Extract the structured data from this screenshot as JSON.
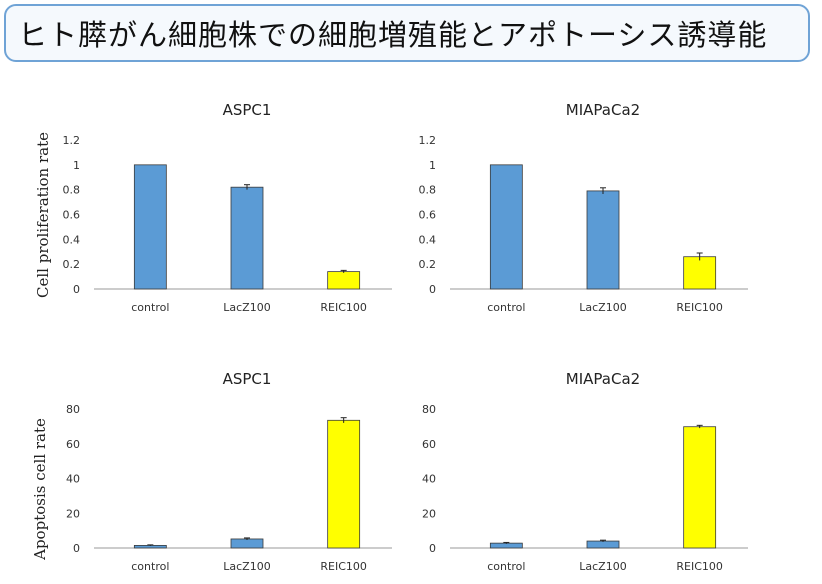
{
  "title": "ヒト膵がん細胞株での細胞増殖能とアポトーシス誘導能",
  "ylabels": {
    "top": "Cell proliferation rate",
    "bottom": "Apoptosis cell rate"
  },
  "colors": {
    "blue": "#5b9bd5",
    "yellow": "#ffff00",
    "axis": "#9a9a9a",
    "text": "#333333"
  },
  "chart_data": [
    {
      "type": "bar",
      "title": "ASPC1",
      "xlabel": "",
      "ylabel": "Cell proliferation rate",
      "categories": [
        "control",
        "LacZ100",
        "REIC100"
      ],
      "values": [
        1.0,
        0.82,
        0.14
      ],
      "errors": [
        0,
        0.02,
        0.01
      ],
      "bar_colors": [
        "#5b9bd5",
        "#5b9bd5",
        "#ffff00"
      ],
      "ylim": [
        0,
        1.2
      ],
      "yticks": [
        "0",
        "0.2",
        "0.4",
        "0.6",
        "0.8",
        "1",
        "1.2"
      ],
      "ytick_values": [
        0,
        0.2,
        0.4,
        0.6,
        0.8,
        1.0,
        1.2
      ]
    },
    {
      "type": "bar",
      "title": "MIAPaCa2",
      "xlabel": "",
      "ylabel": "Cell proliferation rate",
      "categories": [
        "control",
        "LacZ100",
        "REIC100"
      ],
      "values": [
        1.0,
        0.79,
        0.26
      ],
      "errors": [
        0,
        0.025,
        0.03
      ],
      "bar_colors": [
        "#5b9bd5",
        "#5b9bd5",
        "#ffff00"
      ],
      "ylim": [
        0,
        1.2
      ],
      "yticks": [
        "0",
        "0.2",
        "0.4",
        "0.6",
        "0.8",
        "1",
        "1.2"
      ],
      "ytick_values": [
        0,
        0.2,
        0.4,
        0.6,
        0.8,
        1.0,
        1.2
      ]
    },
    {
      "type": "bar",
      "title": "ASPC1",
      "xlabel": "",
      "ylabel": "Apoptosis cell rate",
      "categories": [
        "control",
        "LacZ100",
        "REIC100"
      ],
      "values": [
        1.5,
        5.2,
        73.5
      ],
      "errors": [
        0.3,
        0.6,
        1.5
      ],
      "bar_colors": [
        "#5b9bd5",
        "#5b9bd5",
        "#ffff00"
      ],
      "ylim": [
        0,
        80
      ],
      "yticks": [
        "0",
        "20",
        "40",
        "60",
        "80"
      ],
      "ytick_values": [
        0,
        20,
        40,
        60,
        80
      ]
    },
    {
      "type": "bar",
      "title": "MIAPaCa2",
      "xlabel": "",
      "ylabel": "Apoptosis cell rate",
      "categories": [
        "control",
        "LacZ100",
        "REIC100"
      ],
      "values": [
        2.8,
        4.0,
        69.8
      ],
      "errors": [
        0.4,
        0.5,
        0.8
      ],
      "bar_colors": [
        "#5b9bd5",
        "#5b9bd5",
        "#ffff00"
      ],
      "ylim": [
        0,
        80
      ],
      "yticks": [
        "0",
        "20",
        "40",
        "60",
        "80"
      ],
      "ytick_values": [
        0,
        20,
        40,
        60,
        80
      ]
    }
  ]
}
